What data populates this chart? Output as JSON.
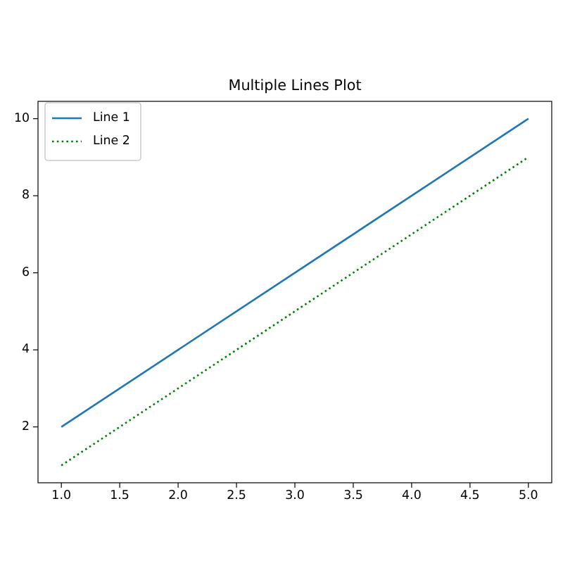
{
  "chart_data": {
    "type": "line",
    "title": "Multiple Lines Plot",
    "x": [
      1,
      2,
      3,
      4,
      5
    ],
    "series": [
      {
        "name": "Line 1",
        "color": "#1f77b4",
        "values": [
          2,
          4,
          6,
          8,
          10
        ],
        "line_style": "solid"
      },
      {
        "name": "Line 2",
        "color": "#008000",
        "values": [
          1,
          3,
          5,
          7,
          9
        ],
        "line_style": "dotted"
      }
    ],
    "xlim": [
      0.8,
      5.2
    ],
    "ylim": [
      0.55,
      10.45
    ],
    "xticks": [
      {
        "value": 1,
        "label": "1.0"
      },
      1.5,
      {
        "value": 2,
        "label": "2.0"
      },
      2.5,
      {
        "value": 3,
        "label": "3.0"
      },
      3.5,
      {
        "value": 4,
        "label": "4.0"
      },
      4.5,
      {
        "value": 5,
        "label": "5.0"
      }
    ],
    "yticks": [
      2,
      4,
      6,
      8,
      10
    ],
    "legend": "top left",
    "grid": false
  }
}
